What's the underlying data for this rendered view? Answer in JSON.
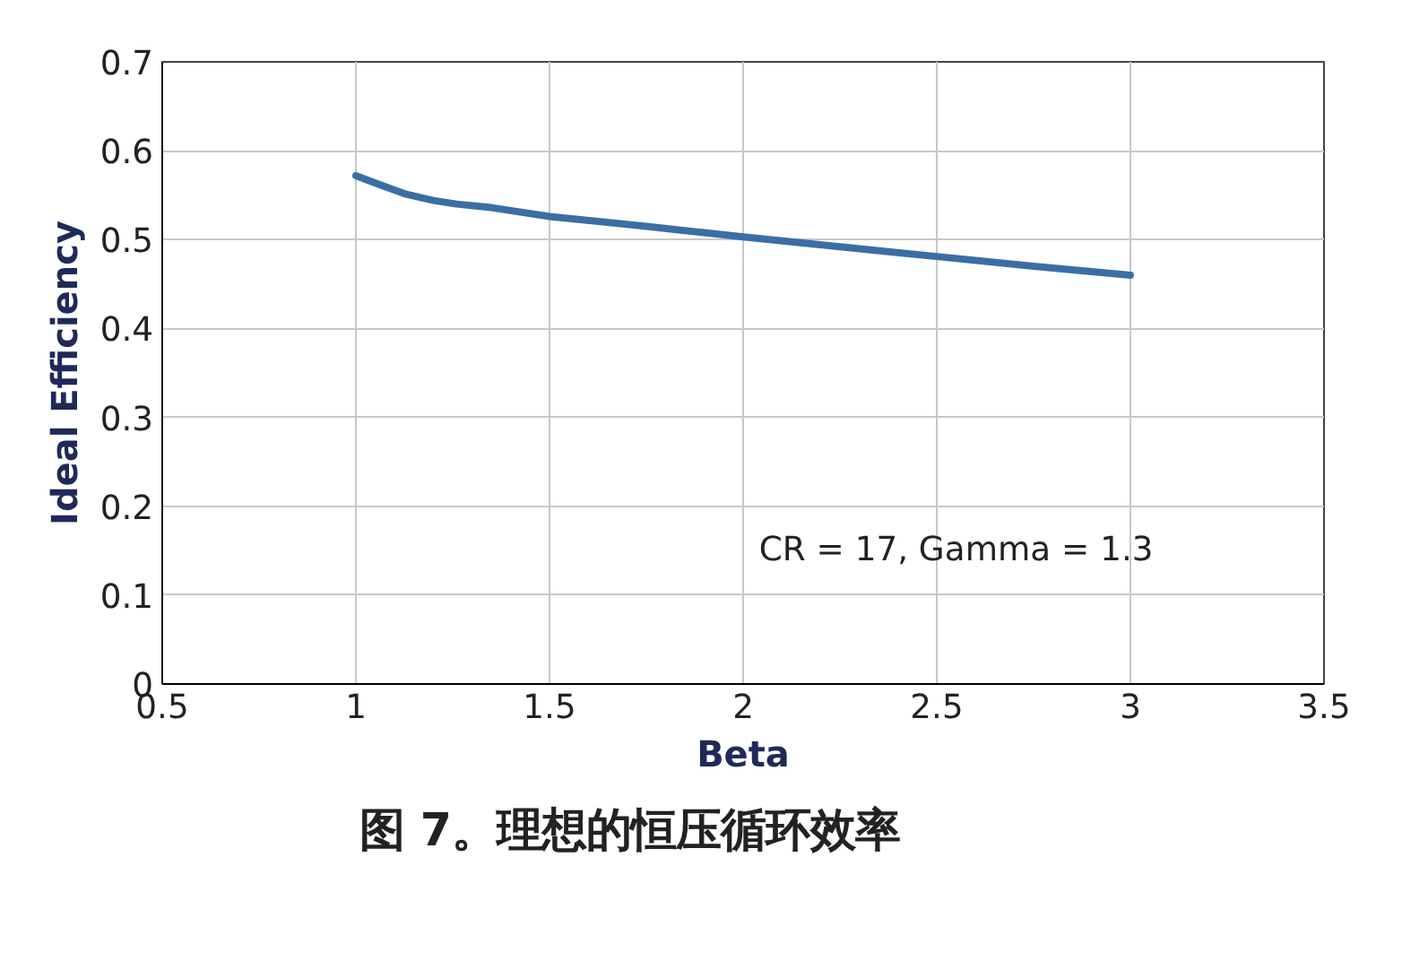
{
  "chart_data": {
    "type": "line",
    "xlabel": "Beta",
    "ylabel": "Ideal Efficiency",
    "x": [
      1.0,
      1.06,
      1.13,
      1.2,
      1.26,
      1.35,
      1.5,
      1.75,
      2.0,
      2.25,
      2.5,
      2.75,
      3.0
    ],
    "series": [
      {
        "color": "#3a6ea5",
        "values": [
          0.572,
          0.562,
          0.551,
          0.544,
          0.54,
          0.536,
          0.526,
          0.515,
          0.503,
          0.492,
          0.481,
          0.47,
          0.46
        ]
      }
    ],
    "xlim": [
      0.5,
      3.5
    ],
    "xticks": [
      0.5,
      1,
      1.5,
      2,
      2.5,
      3,
      3.5
    ],
    "ylim": [
      0,
      0.7
    ],
    "yticks": [
      0,
      0.1,
      0.2,
      0.3,
      0.4,
      0.5,
      0.6,
      0.7
    ],
    "grid": true,
    "marker": "none",
    "line_style": "solid",
    "annotations": [
      "CR = 17, Gamma = 1.3",
      "图 7。理想的恒压循环效率"
    ]
  }
}
